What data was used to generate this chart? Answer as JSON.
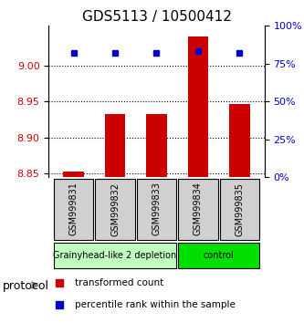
{
  "title": "GDS5113 / 10500412",
  "samples": [
    "GSM999831",
    "GSM999832",
    "GSM999833",
    "GSM999834",
    "GSM999835"
  ],
  "bar_values": [
    8.852,
    8.932,
    8.933,
    9.04,
    8.947
  ],
  "percentile_values": [
    82,
    82,
    82,
    83,
    82
  ],
  "ylim_left": [
    8.845,
    9.055
  ],
  "ylim_right": [
    0,
    100
  ],
  "yticks_left": [
    8.85,
    8.9,
    8.95,
    9.0
  ],
  "yticks_right": [
    0,
    25,
    50,
    75,
    100
  ],
  "bar_color": "#cc0000",
  "percentile_color": "#0000cc",
  "bar_bottom": 8.845,
  "groups": [
    {
      "label": "Grainyhead-like 2 depletion",
      "indices": [
        0,
        1,
        2
      ],
      "color": "#c0ffc0"
    },
    {
      "label": "control",
      "indices": [
        3,
        4
      ],
      "color": "#00e000"
    }
  ],
  "group_label_fontsize": 7,
  "protocol_label": "protocol",
  "legend_items": [
    {
      "color": "#cc0000",
      "label": "transformed count"
    },
    {
      "color": "#0000cc",
      "label": "percentile rank within the sample"
    }
  ]
}
